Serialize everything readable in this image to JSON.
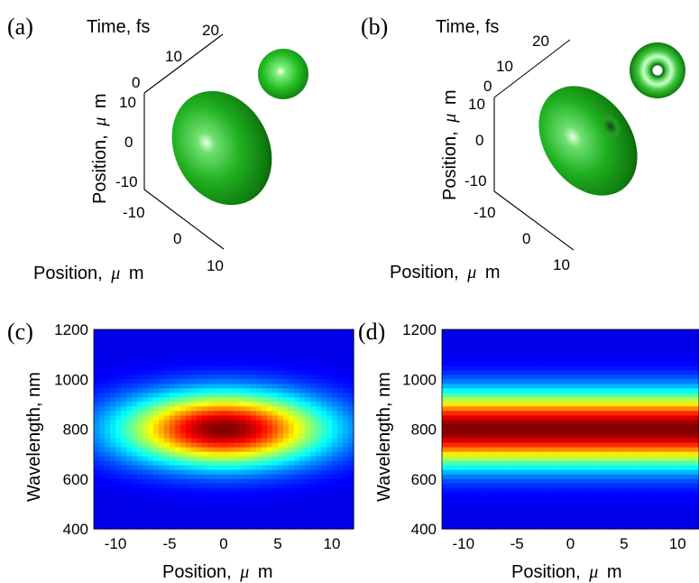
{
  "panels": {
    "a": {
      "label": "(a)"
    },
    "b": {
      "label": "(b)"
    },
    "c": {
      "label": "(c)"
    },
    "d": {
      "label": "(d)"
    }
  },
  "axis_labels": {
    "time_prefix": "Time, fs",
    "position_prefix": "Position,",
    "mu": "μ",
    "m": "m",
    "wavelength": "Wavelength, nm"
  },
  "colors": {
    "surface_green": "#20b020",
    "surface_dark": "#0a5a0a",
    "surface_highlight": "#d8ffd8"
  },
  "chart_data": [
    {
      "panel": "a",
      "type": "other",
      "description_type": "3d-isosurface",
      "axes": {
        "time_ticks": [
          "0",
          "10",
          "20"
        ],
        "position_vertical_ticks": [
          "10",
          "0",
          "-10"
        ],
        "position_depth_ticks": [
          "-10",
          "0",
          "10"
        ]
      },
      "inset": "sphere"
    },
    {
      "panel": "b",
      "type": "other",
      "description_type": "3d-isosurface",
      "axes": {
        "time_ticks": [
          "0",
          "10",
          "20"
        ],
        "position_vertical_ticks": [
          "10",
          "0",
          "-10"
        ],
        "position_depth_ticks": [
          "-10",
          "0",
          "10"
        ]
      },
      "inset": "torus"
    },
    {
      "panel": "c",
      "type": "heatmap",
      "x_ticks": [
        -10,
        -5,
        0,
        5,
        10
      ],
      "y_ticks": [
        400,
        600,
        800,
        1000,
        1200
      ],
      "xlim": [
        -12,
        12
      ],
      "ylim": [
        400,
        1200
      ],
      "peak": {
        "x": 0,
        "y": 800
      },
      "sigma_x": 6.5,
      "sigma_y": 100,
      "colormap": "jet"
    },
    {
      "panel": "d",
      "type": "heatmap",
      "x_ticks": [
        -10,
        -5,
        0,
        5,
        10
      ],
      "y_ticks": [
        400,
        600,
        800,
        1000,
        1200
      ],
      "xlim": [
        -12,
        12
      ],
      "ylim": [
        400,
        1200
      ],
      "peak": {
        "y": 800
      },
      "sigma_y": 100,
      "uniform_in_x": true,
      "colormap": "jet"
    }
  ]
}
